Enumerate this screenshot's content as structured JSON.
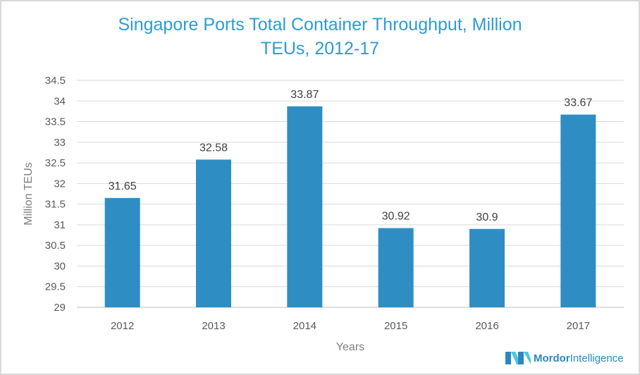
{
  "chart_data": {
    "type": "bar",
    "title": "Singapore Ports Total Container Throughput, Million TEUs, 2012-17",
    "title_lines": [
      "Singapore Ports Total Container Throughput, Million",
      "TEUs, 2012-17"
    ],
    "categories": [
      "2012",
      "2013",
      "2014",
      "2015",
      "2016",
      "2017"
    ],
    "values": [
      31.65,
      32.58,
      33.87,
      30.92,
      30.9,
      33.67
    ],
    "data_labels": [
      "31.65",
      "32.58",
      "33.87",
      "30.92",
      "30.9",
      "33.67"
    ],
    "xlabel": "Years",
    "ylabel": "Million TEUs",
    "ylim": [
      29,
      34.5
    ],
    "yticks": [
      "29",
      "29.5",
      "30",
      "30.5",
      "31",
      "31.5",
      "32",
      "32.5",
      "33",
      "33.5",
      "34",
      "34.5"
    ],
    "grid": true,
    "bar_color": "#2e8ec4",
    "title_color": "#2f9bd1"
  },
  "brand": {
    "name": "Mordor Intelligence",
    "part1": "Mordor",
    "part2": "Intelligence"
  }
}
